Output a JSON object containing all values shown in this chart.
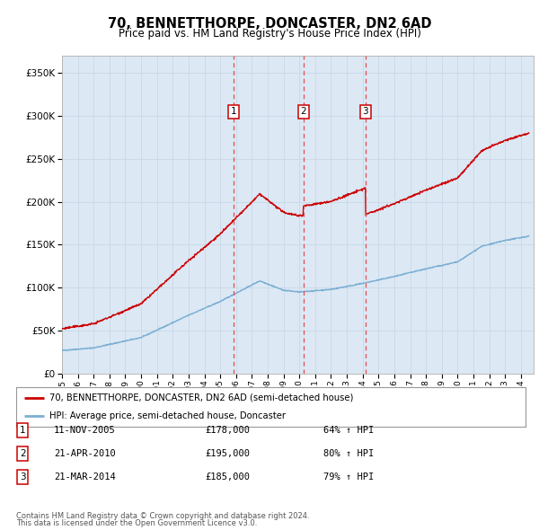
{
  "title": "70, BENNETTHORPE, DONCASTER, DN2 6AD",
  "subtitle": "Price paid vs. HM Land Registry's House Price Index (HPI)",
  "fig_bg": "#ffffff",
  "plot_bg": "#dce8f4",
  "ylim": [
    0,
    370000
  ],
  "yticks": [
    0,
    50000,
    100000,
    150000,
    200000,
    250000,
    300000,
    350000
  ],
  "ytick_labels": [
    "£0",
    "£50K",
    "£100K",
    "£150K",
    "£200K",
    "£250K",
    "£300K",
    "£350K"
  ],
  "sale_times": [
    2005.833,
    2010.25,
    2014.167
  ],
  "sale_prices": [
    178000,
    195000,
    185000
  ],
  "sale_labels": [
    "1",
    "2",
    "3"
  ],
  "sale_info": [
    {
      "num": "1",
      "date": "11-NOV-2005",
      "price": "£178,000",
      "pct": "64% ↑ HPI"
    },
    {
      "num": "2",
      "date": "21-APR-2010",
      "price": "£195,000",
      "pct": "80% ↑ HPI"
    },
    {
      "num": "3",
      "date": "21-MAR-2014",
      "price": "£185,000",
      "pct": "79% ↑ HPI"
    }
  ],
  "legend_entries": [
    "70, BENNETTHORPE, DONCASTER, DN2 6AD (semi-detached house)",
    "HPI: Average price, semi-detached house, Doncaster"
  ],
  "footer_line1": "Contains HM Land Registry data © Crown copyright and database right 2024.",
  "footer_line2": "This data is licensed under the Open Government Licence v3.0.",
  "red_color": "#cc0000",
  "blue_color": "#7bafd4",
  "vline_color": "#e05050",
  "grid_color": "#c8d8e8",
  "spine_color": "#b0b0b0"
}
